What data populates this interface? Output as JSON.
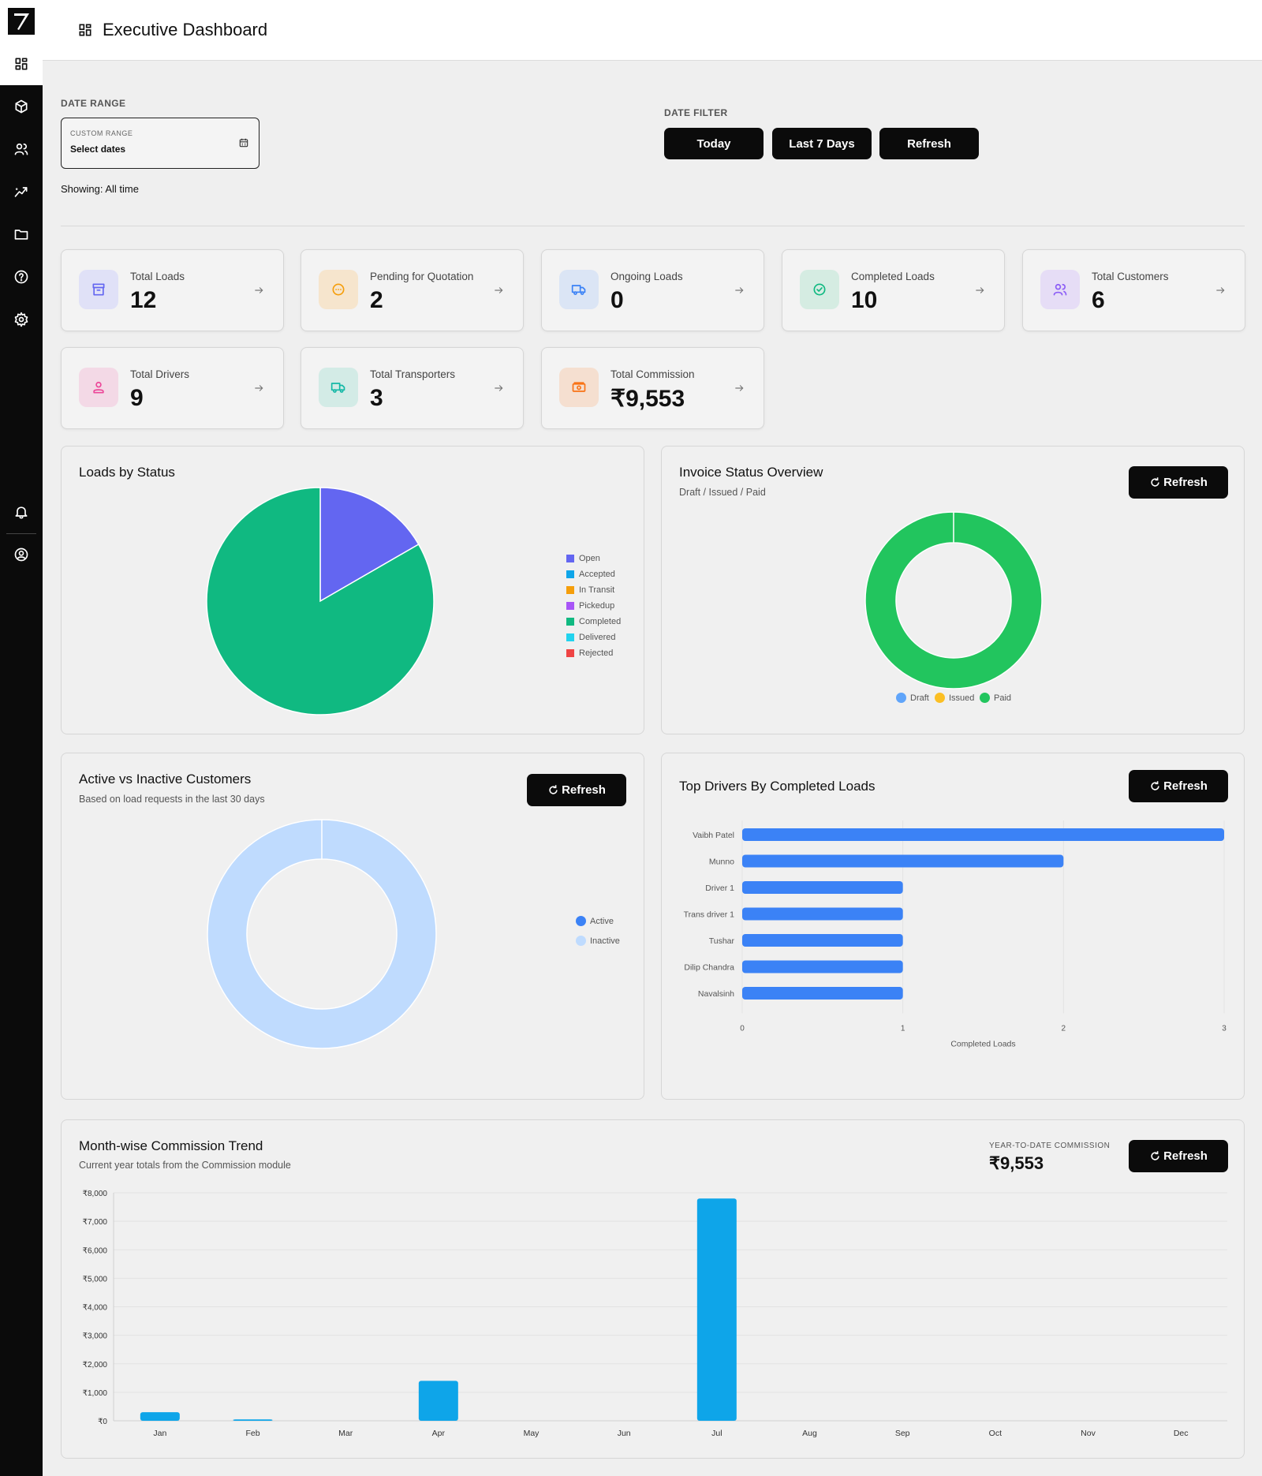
{
  "header": {
    "title": "Executive Dashboard"
  },
  "filters": {
    "date_range_label": "DATE RANGE",
    "custom_range_label": "CUSTOM RANGE",
    "custom_range_value": "Select dates",
    "showing": "Showing: All time",
    "date_filter_label": "DATE FILTER",
    "buttons": {
      "today": "Today",
      "last7": "Last 7 Days",
      "refresh": "Refresh"
    }
  },
  "stats": [
    {
      "label": "Total Loads",
      "value": "12",
      "icon": "archive-icon",
      "color": "#6366f1"
    },
    {
      "label": "Pending for Quotation",
      "value": "2",
      "icon": "clock-dots-icon",
      "color": "#f59e0b"
    },
    {
      "label": "Ongoing Loads",
      "value": "0",
      "icon": "truck-icon",
      "color": "#3b82f6"
    },
    {
      "label": "Completed Loads",
      "value": "10",
      "icon": "check-circle-icon",
      "color": "#10b981"
    },
    {
      "label": "Total Customers",
      "value": "6",
      "icon": "users-icon",
      "color": "#8b5cf6"
    },
    {
      "label": "Total Drivers",
      "value": "9",
      "icon": "user-icon",
      "color": "#ec4899"
    },
    {
      "label": "Total Transporters",
      "value": "3",
      "icon": "truck-icon",
      "color": "#14b8a6"
    },
    {
      "label": "Total Commission",
      "value": "₹9,553",
      "icon": "money-icon",
      "color": "#f97316"
    }
  ],
  "panels": {
    "loads_by_status": {
      "title": "Loads by Status"
    },
    "invoice": {
      "title": "Invoice Status Overview",
      "subtitle": "Draft / Issued / Paid",
      "refresh": "Refresh"
    },
    "customers": {
      "title": "Active vs Inactive Customers",
      "subtitle": "Based on load requests in the last 30 days",
      "refresh": "Refresh"
    },
    "drivers": {
      "title": "Top Drivers By Completed Loads",
      "refresh": "Refresh"
    },
    "commission": {
      "title": "Month-wise Commission Trend",
      "subtitle": "Current year totals from the Commission module",
      "ytd_label": "YEAR-TO-DATE COMMISSION",
      "ytd_value": "₹9,553",
      "refresh": "Refresh"
    }
  },
  "chart_data": [
    {
      "type": "pie",
      "title": "Loads by Status",
      "categories": [
        "Open",
        "Accepted",
        "In Transit",
        "Pickedup",
        "Completed",
        "Delivered",
        "Rejected"
      ],
      "values": [
        2,
        0,
        0,
        0,
        10,
        0,
        0
      ],
      "colors": [
        "#6366f1",
        "#0ea5e9",
        "#f59e0b",
        "#a855f7",
        "#10b981",
        "#22d3ee",
        "#ef4444"
      ],
      "legend": "right"
    },
    {
      "type": "pie",
      "title": "Invoice Status Overview",
      "categories": [
        "Draft",
        "Issued",
        "Paid"
      ],
      "values": [
        0,
        0,
        1
      ],
      "colors": [
        "#60a5fa",
        "#fbbf24",
        "#22c55e"
      ],
      "legend": "bottom"
    },
    {
      "type": "pie",
      "title": "Active vs Inactive Customers",
      "categories": [
        "Active",
        "Inactive"
      ],
      "values": [
        0,
        6
      ],
      "colors": [
        "#3b82f6",
        "#bfdbfe"
      ],
      "legend": "right"
    },
    {
      "type": "bar",
      "title": "Top Drivers By Completed Loads",
      "orientation": "horizontal",
      "categories": [
        "Vaibh Patel",
        "Munno",
        "Driver 1",
        "Trans driver 1",
        "Tushar",
        "Dilip Chandra",
        "Navalsinh"
      ],
      "values": [
        3,
        2,
        1,
        1,
        1,
        1,
        1
      ],
      "xlabel": "Completed Loads",
      "xlim": [
        0,
        3
      ],
      "xticks": [
        "0",
        "1",
        "2",
        "3"
      ],
      "color": "#3b82f6"
    },
    {
      "type": "bar",
      "title": "Month-wise Commission Trend",
      "categories": [
        "Jan",
        "Feb",
        "Mar",
        "Apr",
        "May",
        "Jun",
        "Jul",
        "Aug",
        "Sep",
        "Oct",
        "Nov",
        "Dec"
      ],
      "values": [
        300,
        50,
        0,
        1400,
        0,
        0,
        7800,
        0,
        0,
        0,
        0,
        0
      ],
      "ylim": [
        0,
        8000
      ],
      "yticks": [
        "₹0",
        "₹1,000",
        "₹2,000",
        "₹3,000",
        "₹4,000",
        "₹5,000",
        "₹6,000",
        "₹7,000",
        "₹8,000"
      ],
      "color": "#0ea5e9",
      "grid": true
    }
  ]
}
